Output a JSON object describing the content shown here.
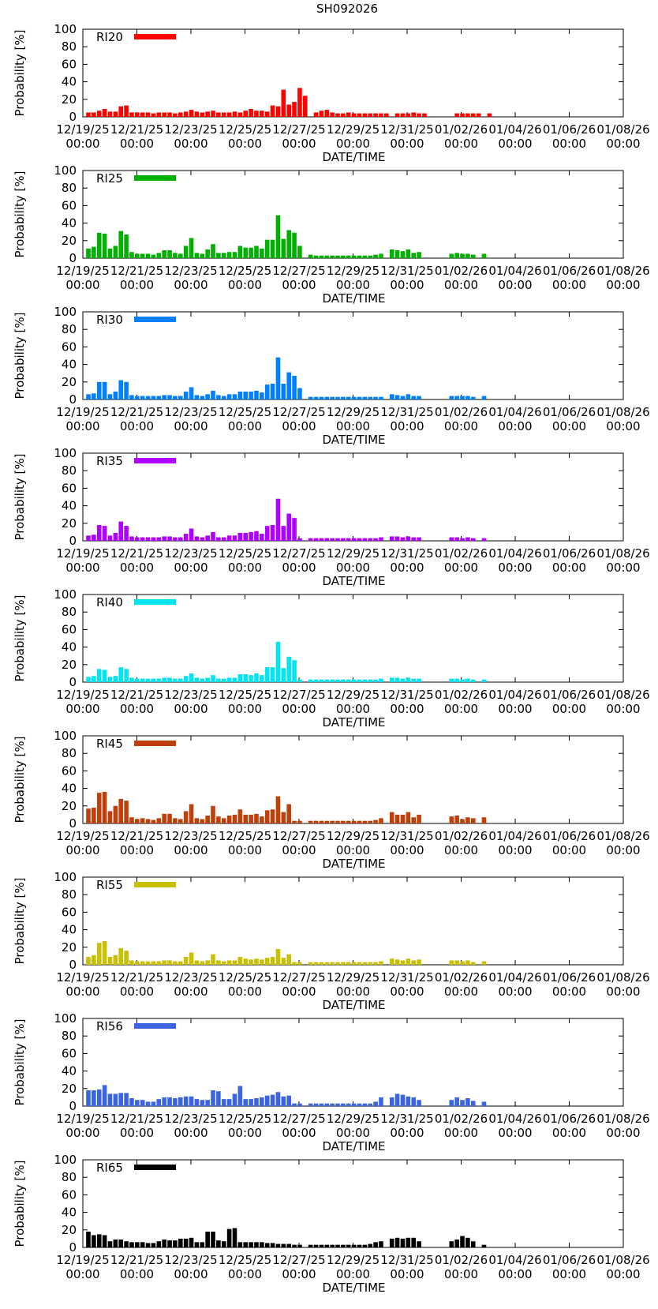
{
  "page_title": "SH092026",
  "chart_data": [
    {
      "type": "bar",
      "series_name": "RI20",
      "color": "#ff0000",
      "title": "SH092026",
      "xlabel": "DATE/TIME",
      "ylabel": "Probability [%]",
      "ylim": [
        0,
        100
      ],
      "yticks": [
        0,
        20,
        40,
        60,
        80,
        100
      ],
      "x_tick_dates": [
        "12/19/25",
        "12/21/25",
        "12/23/25",
        "12/25/25",
        "12/27/25",
        "12/29/25",
        "12/31/25",
        "01/02/26",
        "01/04/26",
        "01/06/26",
        "01/08/26"
      ],
      "x_tick_times": [
        "00:00",
        "00:00",
        "00:00",
        "00:00",
        "00:00",
        "00:00",
        "00:00",
        "00:00",
        "00:00",
        "00:00",
        "00:00"
      ],
      "values": [
        5,
        5,
        7,
        9,
        6,
        6,
        12,
        13,
        5,
        5,
        5,
        5,
        4,
        5,
        5,
        5,
        4,
        5,
        6,
        8,
        6,
        5,
        6,
        7,
        5,
        5,
        5,
        6,
        5,
        7,
        9,
        7,
        7,
        6,
        13,
        12,
        31,
        14,
        17,
        33,
        24,
        null,
        5,
        7,
        8,
        5,
        4,
        4,
        5,
        4,
        4,
        4,
        4,
        4,
        4,
        4,
        null,
        4,
        4,
        4,
        5,
        4,
        4,
        null,
        null,
        null,
        null,
        null,
        4,
        4,
        4,
        4,
        4,
        null,
        4
      ]
    },
    {
      "type": "bar",
      "series_name": "RI25",
      "color": "#00b000",
      "title": "",
      "xlabel": "DATE/TIME",
      "ylabel": "Probability [%]",
      "ylim": [
        0,
        100
      ],
      "yticks": [
        0,
        20,
        40,
        60,
        80,
        100
      ],
      "x_tick_dates": [
        "12/19/25",
        "12/21/25",
        "12/23/25",
        "12/25/25",
        "12/27/25",
        "12/29/25",
        "12/31/25",
        "01/02/26",
        "01/04/26",
        "01/06/26",
        "01/08/26"
      ],
      "x_tick_times": [
        "00:00",
        "00:00",
        "00:00",
        "00:00",
        "00:00",
        "00:00",
        "00:00",
        "00:00",
        "00:00",
        "00:00",
        "00:00"
      ],
      "values": [
        11,
        13,
        29,
        28,
        11,
        14,
        31,
        27,
        7,
        5,
        5,
        5,
        4,
        6,
        9,
        9,
        6,
        5,
        14,
        23,
        6,
        5,
        10,
        16,
        6,
        6,
        7,
        7,
        14,
        12,
        12,
        14,
        11,
        21,
        21,
        49,
        22,
        32,
        29,
        14,
        null,
        4,
        3,
        3,
        3,
        3,
        3,
        3,
        3,
        3,
        3,
        3,
        3,
        4,
        5,
        null,
        10,
        9,
        8,
        10,
        6,
        7,
        null,
        null,
        null,
        null,
        null,
        5,
        6,
        5,
        5,
        4,
        null,
        5
      ]
    },
    {
      "type": "bar",
      "series_name": "RI30",
      "color": "#0080ff",
      "title": "",
      "xlabel": "DATE/TIME",
      "ylabel": "Probability [%]",
      "ylim": [
        0,
        100
      ],
      "yticks": [
        0,
        20,
        40,
        60,
        80,
        100
      ],
      "x_tick_dates": [
        "12/19/25",
        "12/21/25",
        "12/23/25",
        "12/25/25",
        "12/27/25",
        "12/29/25",
        "12/31/25",
        "01/02/26",
        "01/04/26",
        "01/06/26",
        "01/08/26"
      ],
      "x_tick_times": [
        "00:00",
        "00:00",
        "00:00",
        "00:00",
        "00:00",
        "00:00",
        "00:00",
        "00:00",
        "00:00",
        "00:00",
        "00:00"
      ],
      "values": [
        6,
        7,
        20,
        20,
        6,
        9,
        22,
        20,
        5,
        4,
        4,
        4,
        4,
        4,
        5,
        5,
        4,
        4,
        9,
        14,
        5,
        4,
        6,
        10,
        5,
        4,
        6,
        6,
        9,
        9,
        9,
        10,
        8,
        17,
        18,
        48,
        18,
        31,
        27,
        13,
        null,
        3,
        3,
        3,
        3,
        3,
        3,
        3,
        3,
        3,
        3,
        3,
        3,
        3,
        3,
        null,
        6,
        5,
        4,
        6,
        4,
        4,
        null,
        null,
        null,
        null,
        null,
        4,
        4,
        4,
        4,
        3,
        null,
        4
      ]
    },
    {
      "type": "bar",
      "series_name": "RI35",
      "color": "#b000ff",
      "title": "",
      "xlabel": "DATE/TIME",
      "ylabel": "Probability [%]",
      "ylim": [
        0,
        100
      ],
      "yticks": [
        0,
        20,
        40,
        60,
        80,
        100
      ],
      "x_tick_dates": [
        "12/19/25",
        "12/21/25",
        "12/23/25",
        "12/25/25",
        "12/27/25",
        "12/29/25",
        "12/31/25",
        "01/02/26",
        "01/04/26",
        "01/06/26",
        "01/08/26"
      ],
      "x_tick_times": [
        "00:00",
        "00:00",
        "00:00",
        "00:00",
        "00:00",
        "00:00",
        "00:00",
        "00:00",
        "00:00",
        "00:00",
        "00:00"
      ],
      "values": [
        6,
        7,
        18,
        17,
        6,
        9,
        22,
        17,
        5,
        4,
        4,
        4,
        4,
        4,
        5,
        5,
        4,
        4,
        8,
        14,
        5,
        4,
        6,
        10,
        4,
        4,
        6,
        6,
        9,
        9,
        10,
        11,
        8,
        17,
        18,
        48,
        17,
        31,
        26,
        3,
        null,
        3,
        3,
        3,
        3,
        3,
        3,
        3,
        3,
        3,
        3,
        3,
        3,
        3,
        4,
        null,
        5,
        5,
        4,
        5,
        4,
        4,
        null,
        null,
        null,
        null,
        null,
        4,
        4,
        3,
        4,
        3,
        null,
        3
      ]
    },
    {
      "type": "bar",
      "series_name": "RI40",
      "color": "#00e5f0",
      "title": "",
      "xlabel": "DATE/TIME",
      "ylabel": "Probability [%]",
      "ylim": [
        0,
        100
      ],
      "yticks": [
        0,
        20,
        40,
        60,
        80,
        100
      ],
      "x_tick_dates": [
        "12/19/25",
        "12/21/25",
        "12/23/25",
        "12/25/25",
        "12/27/25",
        "12/29/25",
        "12/31/25",
        "01/02/26",
        "01/04/26",
        "01/06/26",
        "01/08/26"
      ],
      "x_tick_times": [
        "00:00",
        "00:00",
        "00:00",
        "00:00",
        "00:00",
        "00:00",
        "00:00",
        "00:00",
        "00:00",
        "00:00",
        "00:00"
      ],
      "values": [
        6,
        7,
        15,
        14,
        6,
        7,
        17,
        15,
        5,
        4,
        4,
        4,
        4,
        4,
        5,
        5,
        4,
        4,
        7,
        10,
        5,
        4,
        5,
        8,
        4,
        4,
        5,
        5,
        9,
        9,
        8,
        10,
        8,
        17,
        17,
        46,
        16,
        29,
        25,
        3,
        null,
        3,
        3,
        3,
        3,
        3,
        3,
        3,
        3,
        3,
        3,
        3,
        3,
        3,
        4,
        null,
        5,
        5,
        4,
        5,
        4,
        4,
        null,
        null,
        null,
        null,
        null,
        4,
        4,
        3,
        4,
        3,
        null,
        3
      ]
    },
    {
      "type": "bar",
      "series_name": "RI45",
      "color": "#c0400c",
      "title": "",
      "xlabel": "DATE/TIME",
      "ylabel": "Probability [%]",
      "ylim": [
        0,
        100
      ],
      "yticks": [
        0,
        20,
        40,
        60,
        80,
        100
      ],
      "x_tick_dates": [
        "12/19/25",
        "12/21/25",
        "12/23/25",
        "12/25/25",
        "12/27/25",
        "12/29/25",
        "12/31/25",
        "01/02/26",
        "01/04/26",
        "01/06/26",
        "01/08/26"
      ],
      "x_tick_times": [
        "00:00",
        "00:00",
        "00:00",
        "00:00",
        "00:00",
        "00:00",
        "00:00",
        "00:00",
        "00:00",
        "00:00",
        "00:00"
      ],
      "values": [
        17,
        18,
        35,
        36,
        14,
        20,
        28,
        26,
        7,
        5,
        6,
        5,
        4,
        6,
        11,
        11,
        6,
        5,
        14,
        22,
        6,
        5,
        9,
        20,
        8,
        6,
        9,
        10,
        16,
        10,
        10,
        11,
        8,
        15,
        16,
        31,
        13,
        22,
        3,
        3,
        null,
        3,
        3,
        3,
        3,
        3,
        3,
        3,
        3,
        3,
        3,
        3,
        3,
        4,
        6,
        null,
        13,
        10,
        10,
        13,
        7,
        10,
        null,
        null,
        null,
        null,
        null,
        8,
        9,
        5,
        7,
        6,
        null,
        7
      ]
    },
    {
      "type": "bar",
      "series_name": "RI55",
      "color": "#c8c000",
      "title": "",
      "xlabel": "DATE/TIME",
      "ylabel": "Probability [%]",
      "ylim": [
        0,
        100
      ],
      "yticks": [
        0,
        20,
        40,
        60,
        80,
        100
      ],
      "x_tick_dates": [
        "12/19/25",
        "12/21/25",
        "12/23/25",
        "12/25/25",
        "12/27/25",
        "12/29/25",
        "12/31/25",
        "01/02/26",
        "01/04/26",
        "01/06/26",
        "01/08/26"
      ],
      "x_tick_times": [
        "00:00",
        "00:00",
        "00:00",
        "00:00",
        "00:00",
        "00:00",
        "00:00",
        "00:00",
        "00:00",
        "00:00",
        "00:00"
      ],
      "values": [
        9,
        11,
        25,
        27,
        9,
        11,
        19,
        16,
        5,
        4,
        4,
        4,
        4,
        4,
        5,
        5,
        4,
        4,
        9,
        14,
        5,
        4,
        5,
        12,
        5,
        4,
        5,
        5,
        9,
        7,
        6,
        7,
        6,
        8,
        9,
        18,
        8,
        12,
        3,
        3,
        null,
        3,
        3,
        3,
        3,
        3,
        3,
        3,
        3,
        3,
        3,
        3,
        3,
        3,
        4,
        null,
        7,
        6,
        5,
        7,
        5,
        6,
        null,
        null,
        null,
        null,
        null,
        5,
        5,
        4,
        5,
        3,
        null,
        4
      ]
    },
    {
      "type": "bar",
      "series_name": "RI56",
      "color": "#3c64e0",
      "title": "",
      "xlabel": "DATE/TIME",
      "ylabel": "Probability [%]",
      "ylim": [
        0,
        100
      ],
      "yticks": [
        0,
        20,
        40,
        60,
        80,
        100
      ],
      "x_tick_dates": [
        "12/19/25",
        "12/21/25",
        "12/23/25",
        "12/25/25",
        "12/27/25",
        "12/29/25",
        "12/31/25",
        "01/02/26",
        "01/04/26",
        "01/06/26",
        "01/08/26"
      ],
      "x_tick_times": [
        "00:00",
        "00:00",
        "00:00",
        "00:00",
        "00:00",
        "00:00",
        "00:00",
        "00:00",
        "00:00",
        "00:00",
        "00:00"
      ],
      "values": [
        18,
        18,
        19,
        24,
        14,
        14,
        15,
        15,
        9,
        7,
        7,
        5,
        5,
        8,
        10,
        10,
        9,
        10,
        11,
        11,
        8,
        7,
        7,
        18,
        17,
        8,
        8,
        14,
        23,
        8,
        8,
        9,
        10,
        12,
        13,
        16,
        11,
        12,
        3,
        3,
        null,
        3,
        3,
        3,
        3,
        3,
        3,
        3,
        3,
        3,
        3,
        3,
        3,
        5,
        10,
        null,
        10,
        14,
        13,
        11,
        10,
        7,
        null,
        null,
        null,
        null,
        null,
        7,
        10,
        7,
        9,
        6,
        null,
        5
      ]
    },
    {
      "type": "bar",
      "series_name": "RI65",
      "color": "#000000",
      "title": "",
      "xlabel": "DATE/TIME",
      "ylabel": "Probability [%]",
      "ylim": [
        0,
        100
      ],
      "yticks": [
        0,
        20,
        40,
        60,
        80,
        100
      ],
      "x_tick_dates": [
        "12/19/25",
        "12/21/25",
        "12/23/25",
        "12/25/25",
        "12/27/25",
        "12/29/25",
        "12/31/25",
        "01/02/26",
        "01/04/26",
        "01/06/26",
        "01/08/26"
      ],
      "x_tick_times": [
        "00:00",
        "00:00",
        "00:00",
        "00:00",
        "00:00",
        "00:00",
        "00:00",
        "00:00",
        "00:00",
        "00:00",
        "00:00"
      ],
      "values": [
        18,
        14,
        15,
        14,
        7,
        9,
        9,
        7,
        6,
        6,
        6,
        5,
        5,
        7,
        9,
        8,
        8,
        10,
        10,
        11,
        6,
        6,
        18,
        18,
        8,
        7,
        21,
        22,
        6,
        6,
        6,
        6,
        6,
        5,
        5,
        4,
        4,
        4,
        3,
        3,
        null,
        3,
        3,
        3,
        3,
        3,
        3,
        3,
        3,
        3,
        3,
        3,
        4,
        6,
        7,
        null,
        10,
        11,
        10,
        11,
        11,
        7,
        null,
        null,
        null,
        null,
        null,
        7,
        9,
        13,
        11,
        7,
        null,
        3
      ]
    }
  ]
}
